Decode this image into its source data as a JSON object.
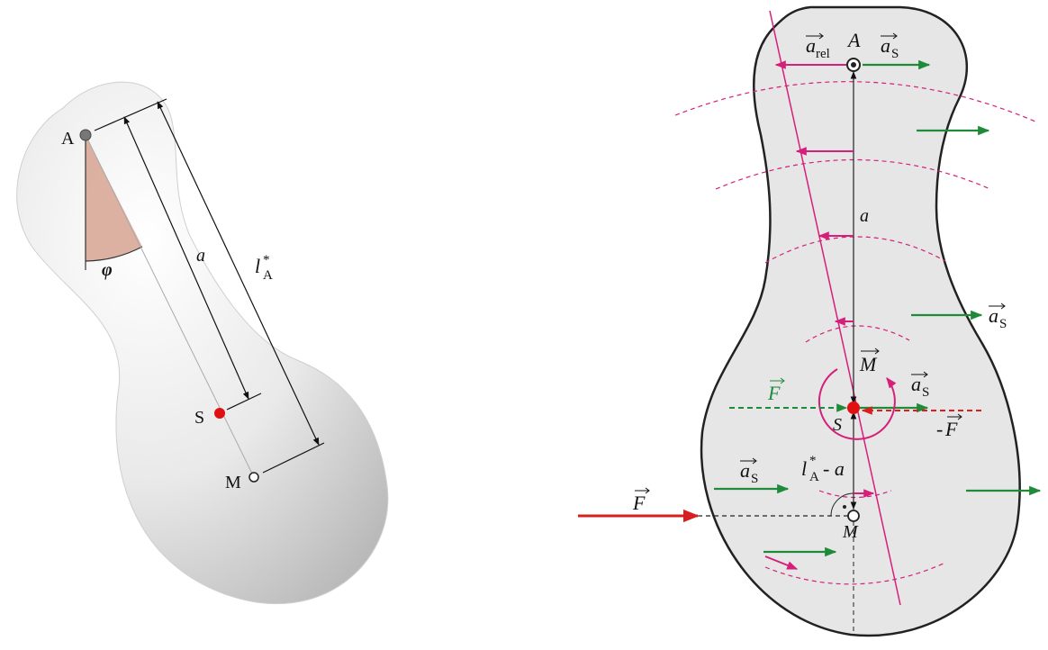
{
  "left_figure": {
    "label_A": "A",
    "label_S": "S",
    "label_M": "M",
    "label_a": "a",
    "label_l_main": "l",
    "label_l_sup": "*",
    "label_l_sub": "A",
    "label_phi": "φ"
  },
  "right_figure": {
    "label_A": "A",
    "label_a": "a",
    "label_S": "S",
    "label_M": "M",
    "a_rel_main": "a",
    "a_rel_sub": "rel",
    "a_S_main": "a",
    "a_S_sub": "S",
    "M_vec": "M",
    "F_vec": "F",
    "minus_F_prefix": "-",
    "minus_F_main": "F",
    "lA_main": "l",
    "lA_sup": "*",
    "lA_sub": "A",
    "lA_rest": "- a"
  },
  "colors": {
    "magenta": "#d61f7a",
    "green": "#1f8a3a",
    "red": "#d81e1e",
    "red_dot": "#e01010",
    "body_fill": "#e6e6e6",
    "outline": "#222222"
  }
}
